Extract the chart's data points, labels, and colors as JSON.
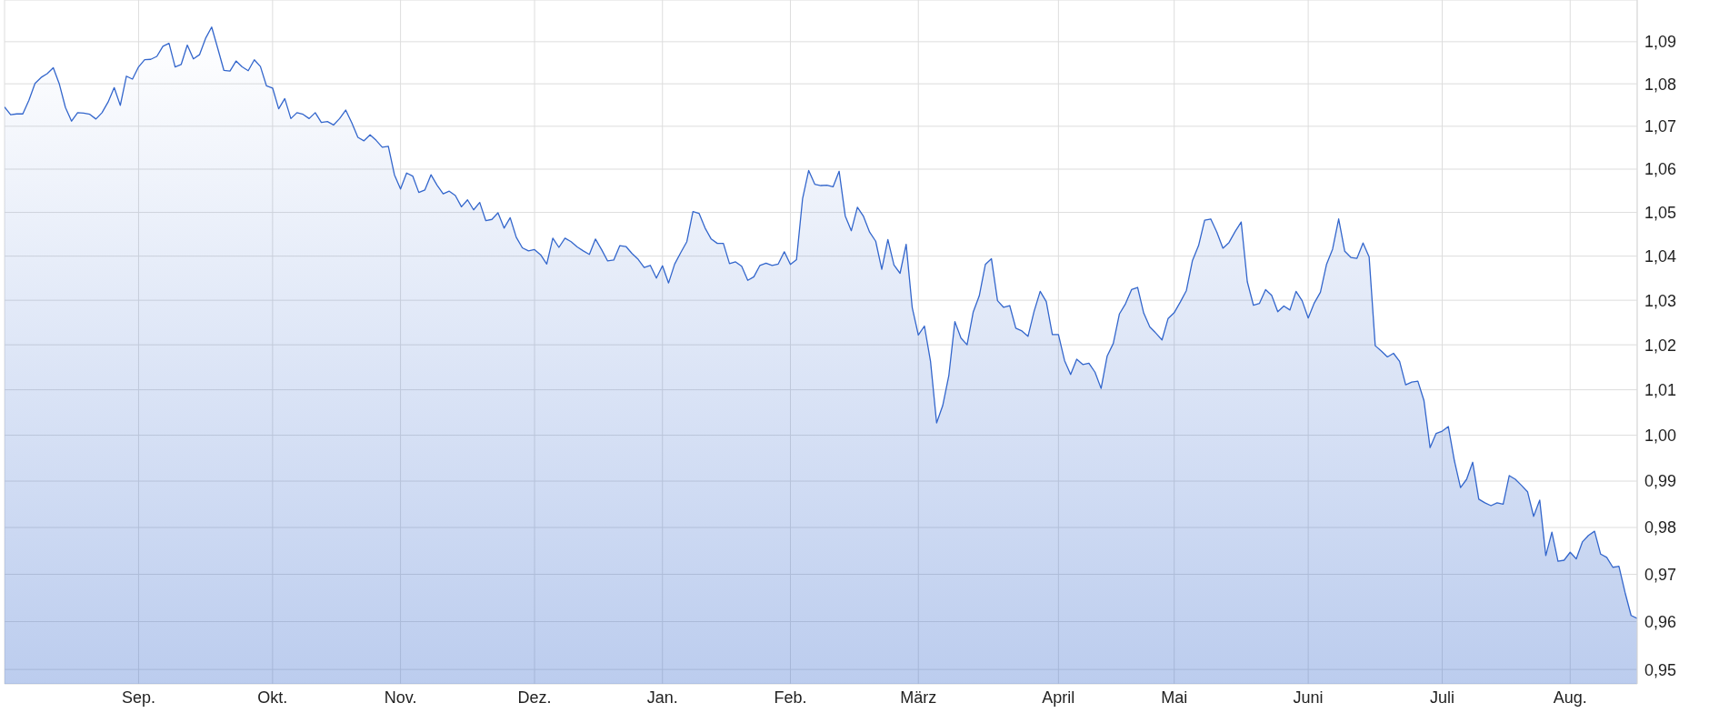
{
  "chart_data": {
    "type": "area",
    "categories": [
      null,
      null,
      null,
      null,
      null,
      null,
      null,
      null,
      null,
      null,
      null,
      null,
      null,
      null,
      null,
      null,
      null,
      null,
      null,
      null,
      null,
      null,
      "Sep.",
      null,
      null,
      null,
      null,
      null,
      null,
      null,
      null,
      null,
      null,
      null,
      null,
      null,
      null,
      null,
      null,
      null,
      null,
      null,
      null,
      null,
      "Okt.",
      null,
      null,
      null,
      null,
      null,
      null,
      null,
      null,
      null,
      null,
      null,
      null,
      null,
      null,
      null,
      null,
      null,
      null,
      null,
      null,
      "Nov.",
      null,
      null,
      null,
      null,
      null,
      null,
      null,
      null,
      null,
      null,
      null,
      null,
      null,
      null,
      null,
      null,
      null,
      null,
      null,
      null,
      null,
      "Dez.",
      null,
      null,
      null,
      null,
      null,
      null,
      null,
      null,
      null,
      null,
      null,
      null,
      null,
      null,
      null,
      null,
      null,
      null,
      null,
      null,
      "Jan.",
      null,
      null,
      null,
      null,
      null,
      null,
      null,
      null,
      null,
      null,
      null,
      null,
      null,
      null,
      null,
      null,
      null,
      null,
      null,
      null,
      "Feb.",
      null,
      null,
      null,
      null,
      null,
      null,
      null,
      null,
      null,
      null,
      null,
      null,
      null,
      null,
      null,
      null,
      null,
      null,
      null,
      null,
      "März",
      null,
      null,
      null,
      null,
      null,
      null,
      null,
      null,
      null,
      null,
      null,
      null,
      null,
      null,
      null,
      null,
      null,
      null,
      null,
      null,
      null,
      null,
      "April",
      null,
      null,
      null,
      null,
      null,
      null,
      null,
      null,
      null,
      null,
      null,
      null,
      null,
      null,
      null,
      null,
      null,
      null,
      "Mai",
      null,
      null,
      null,
      null,
      null,
      null,
      null,
      null,
      null,
      null,
      null,
      null,
      null,
      null,
      null,
      null,
      null,
      null,
      null,
      null,
      null,
      "Juni",
      null,
      null,
      null,
      null,
      null,
      null,
      null,
      null,
      null,
      null,
      null,
      null,
      null,
      null,
      null,
      null,
      null,
      null,
      null,
      null,
      null,
      "Juli",
      null,
      null,
      null,
      null,
      null,
      null,
      null,
      null,
      null,
      null,
      null,
      null,
      null,
      null,
      null,
      null,
      null,
      null,
      null,
      null,
      "Aug.",
      null,
      null,
      null,
      null,
      null,
      null,
      null,
      null,
      null,
      null,
      null
    ],
    "series": [
      {
        "color": "#3366cc",
        "values": [
          1.0745,
          1.0727,
          1.0729,
          1.0729,
          1.0761,
          1.0801,
          1.0815,
          1.0824,
          1.0838,
          1.0799,
          1.0744,
          1.0712,
          1.0732,
          1.0731,
          1.0728,
          1.0717,
          1.0732,
          1.0757,
          1.0791,
          1.0749,
          1.0818,
          1.0811,
          1.084,
          1.0857,
          1.0858,
          1.0865,
          1.0889,
          1.0896,
          1.084,
          1.0846,
          1.0892,
          1.0859,
          1.0869,
          1.0908,
          1.0935,
          1.0884,
          1.0832,
          1.083,
          1.0854,
          1.084,
          1.0831,
          1.0857,
          1.0841,
          1.0795,
          1.079,
          1.0741,
          1.0765,
          1.0718,
          1.0732,
          1.0728,
          1.0718,
          1.0732,
          1.0709,
          1.0711,
          1.0703,
          1.0718,
          1.0738,
          1.0708,
          1.0674,
          1.0666,
          1.068,
          1.0667,
          1.0651,
          1.0653,
          1.0587,
          1.0554,
          1.0591,
          1.0584,
          1.0546,
          1.0552,
          1.0587,
          1.0563,
          1.0543,
          1.0549,
          1.0539,
          1.0513,
          1.0529,
          1.0506,
          1.0523,
          1.0481,
          1.0484,
          1.0499,
          1.0464,
          1.0488,
          1.0443,
          1.0419,
          1.0412,
          1.0415,
          1.0403,
          1.0382,
          1.0441,
          1.042,
          1.0441,
          1.0433,
          1.0421,
          1.0412,
          1.0404,
          1.0439,
          1.0415,
          1.0389,
          1.0391,
          1.0424,
          1.0422,
          1.0406,
          1.0393,
          1.0374,
          1.0379,
          1.035,
          1.0378,
          1.0339,
          1.0382,
          1.0408,
          1.0433,
          1.0502,
          1.0498,
          1.0464,
          1.0439,
          1.0429,
          1.0429,
          1.0383,
          1.0387,
          1.0377,
          1.0345,
          1.0353,
          1.0379,
          1.0384,
          1.0379,
          1.0382,
          1.041,
          1.0381,
          1.0392,
          1.0532,
          1.0597,
          1.0565,
          1.0562,
          1.0563,
          1.0559,
          1.0595,
          1.0492,
          1.0458,
          1.0512,
          1.0491,
          1.0455,
          1.0434,
          1.037,
          1.0438,
          1.038,
          1.0361,
          1.0427,
          1.0283,
          1.0222,
          1.0242,
          1.0163,
          1.0027,
          1.0065,
          1.0131,
          1.0252,
          1.0215,
          1.02,
          1.0273,
          1.031,
          1.0381,
          1.0394,
          1.0299,
          1.0284,
          1.0288,
          1.0237,
          1.0231,
          1.0219,
          1.0275,
          1.032,
          1.0297,
          1.0223,
          1.0223,
          1.0165,
          1.0134,
          1.0168,
          1.0156,
          1.0159,
          1.0139,
          1.0103,
          1.0175,
          1.0203,
          1.0269,
          1.0292,
          1.0324,
          1.0329,
          1.0271,
          1.024,
          1.0226,
          1.0211,
          1.0259,
          1.0272,
          1.0296,
          1.0322,
          1.039,
          1.0424,
          1.0482,
          1.0485,
          1.0455,
          1.0418,
          1.0431,
          1.0456,
          1.0478,
          1.0342,
          1.0289,
          1.0293,
          1.0324,
          1.0311,
          1.0274,
          1.0287,
          1.0278,
          1.032,
          1.0299,
          1.026,
          1.0294,
          1.0318,
          1.0381,
          1.0416,
          1.0485,
          1.0411,
          1.0397,
          1.0395,
          1.043,
          1.0398,
          1.0198,
          1.0186,
          1.0173,
          1.0181,
          1.0163,
          1.0111,
          1.0117,
          1.0119,
          1.0076,
          0.9973,
          1.0004,
          1.0009,
          1.0019,
          0.9944,
          0.9886,
          0.9904,
          0.9941,
          0.9861,
          0.9853,
          0.9847,
          0.9853,
          0.985,
          0.9912,
          0.9904,
          0.9891,
          0.9877,
          0.9824,
          0.9859,
          0.974,
          0.979,
          0.9728,
          0.973,
          0.9747,
          0.9733,
          0.9769,
          0.9783,
          0.9792,
          0.9743,
          0.9736,
          0.9715,
          0.9717,
          0.9662,
          0.9613,
          0.9607
        ]
      }
    ],
    "ylim": [
      0.947,
      1.1
    ],
    "yticks": [
      {
        "value": 0.95,
        "label": "0,95"
      },
      {
        "value": 0.96,
        "label": "0,96"
      },
      {
        "value": 0.97,
        "label": "0,97"
      },
      {
        "value": 0.98,
        "label": "0,98"
      },
      {
        "value": 0.99,
        "label": "0,99"
      },
      {
        "value": 1.0,
        "label": "1,00"
      },
      {
        "value": 1.01,
        "label": "1,01"
      },
      {
        "value": 1.02,
        "label": "1,02"
      },
      {
        "value": 1.03,
        "label": "1,03"
      },
      {
        "value": 1.04,
        "label": "1,04"
      },
      {
        "value": 1.05,
        "label": "1,05"
      },
      {
        "value": 1.06,
        "label": "1,06"
      },
      {
        "value": 1.07,
        "label": "1,07"
      },
      {
        "value": 1.08,
        "label": "1,08"
      },
      {
        "value": 1.09,
        "label": "1,09"
      }
    ],
    "log": "y",
    "grid": true
  }
}
